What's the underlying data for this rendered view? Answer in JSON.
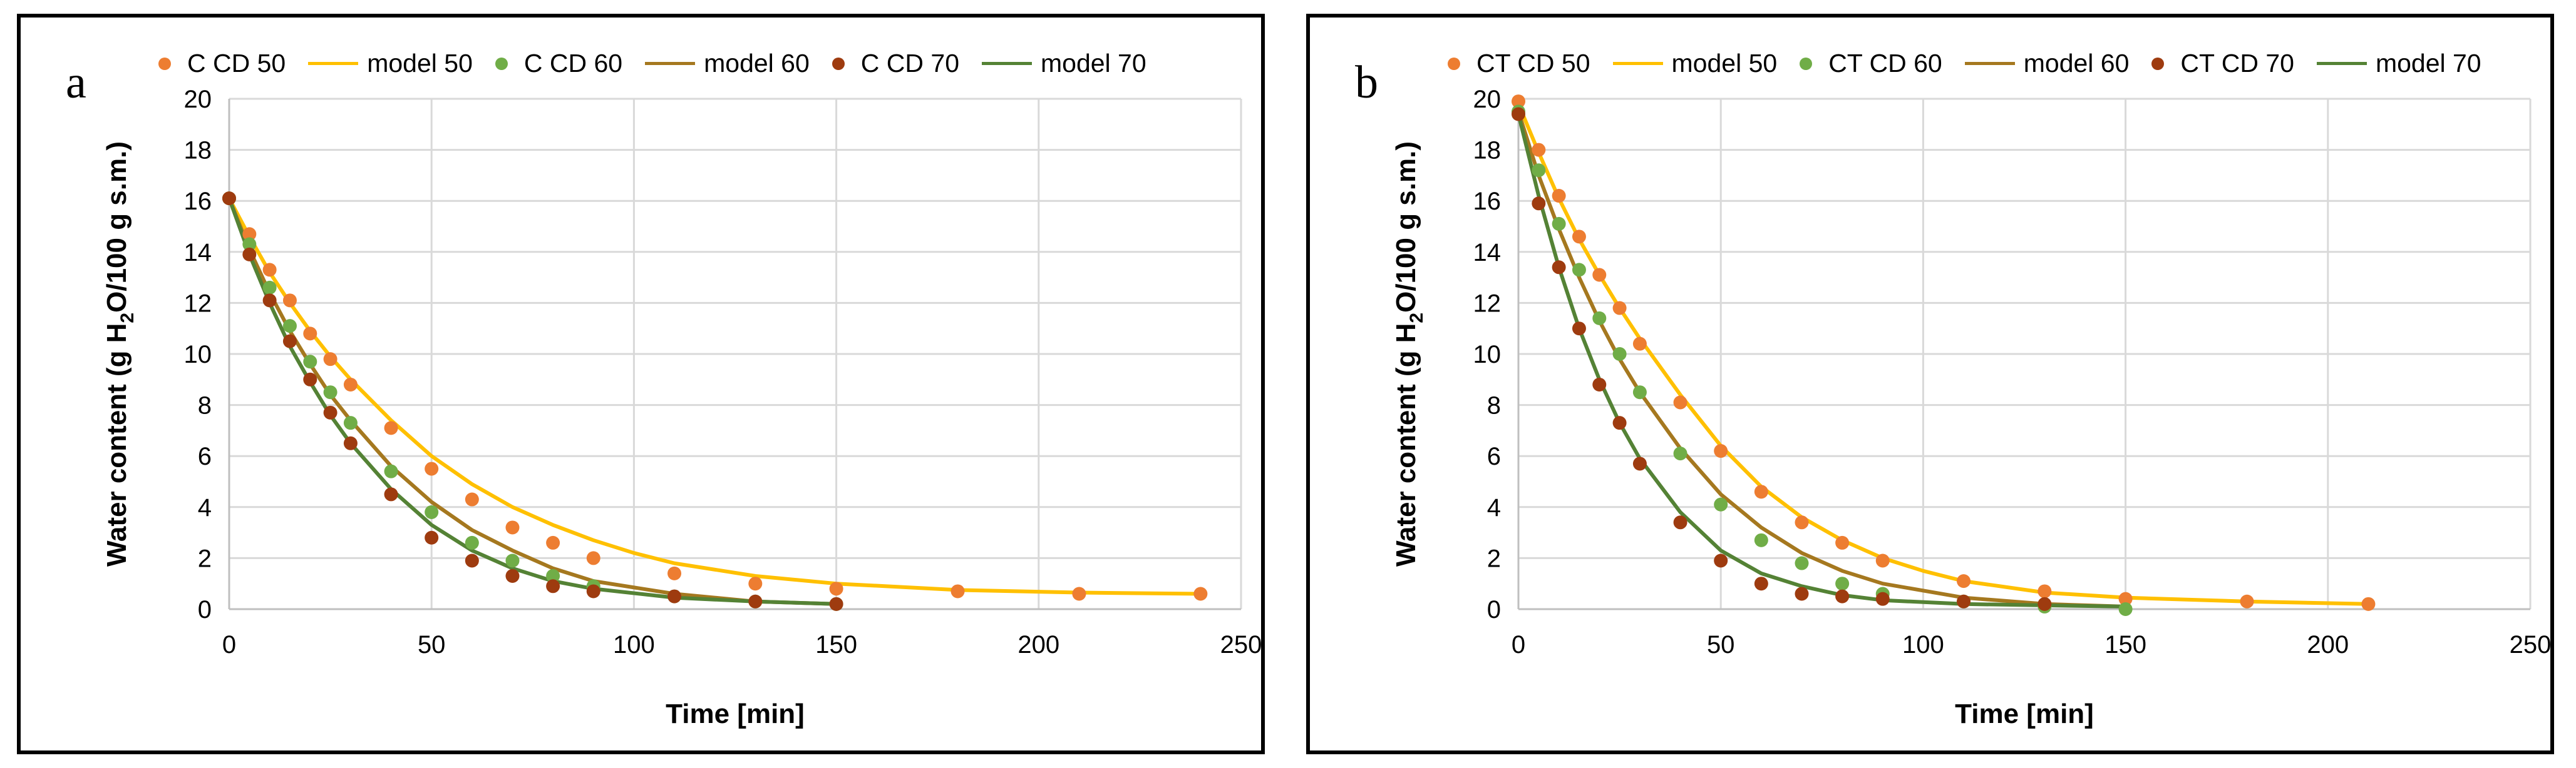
{
  "chart_data": [
    {
      "type": "scatter",
      "panel_label": "a",
      "title": "",
      "xlabel": "Time [min]",
      "ylabel_parts": [
        "Water content (g H",
        "2",
        "O/100 g s.m.)"
      ],
      "xlim": [
        0,
        250
      ],
      "ylim": [
        0,
        20
      ],
      "xticks": [
        0,
        50,
        100,
        150,
        200,
        250
      ],
      "yticks": [
        0,
        2,
        4,
        6,
        8,
        10,
        12,
        14,
        16,
        18,
        20
      ],
      "grid": true,
      "legend_position": "top",
      "series": [
        {
          "name": "C CD 50",
          "kind": "marker",
          "color": "#ED7D31",
          "x": [
            0,
            5,
            10,
            15,
            20,
            25,
            30,
            40,
            50,
            60,
            70,
            80,
            90,
            110,
            130,
            150,
            180,
            210,
            240
          ],
          "y": [
            16.1,
            14.7,
            13.3,
            12.1,
            10.8,
            9.8,
            8.8,
            7.1,
            5.5,
            4.3,
            3.2,
            2.6,
            2.0,
            1.4,
            1.0,
            0.8,
            0.7,
            0.6,
            0.6
          ]
        },
        {
          "name": "model 50",
          "kind": "line",
          "color": "#FFC000",
          "x": [
            0,
            5,
            10,
            15,
            20,
            25,
            30,
            40,
            50,
            60,
            70,
            80,
            90,
            100,
            110,
            130,
            150,
            180,
            210,
            240
          ],
          "y": [
            16.1,
            14.6,
            13.2,
            12.0,
            10.9,
            9.9,
            9.0,
            7.4,
            6.0,
            4.9,
            4.0,
            3.3,
            2.7,
            2.2,
            1.8,
            1.3,
            1.0,
            0.75,
            0.65,
            0.6
          ]
        },
        {
          "name": "C CD 60",
          "kind": "marker",
          "color": "#70AD47",
          "x": [
            0,
            5,
            10,
            15,
            20,
            25,
            30,
            40,
            50,
            60,
            70,
            80,
            90,
            110,
            130,
            150
          ],
          "y": [
            16.1,
            14.3,
            12.6,
            11.1,
            9.7,
            8.5,
            7.3,
            5.4,
            3.8,
            2.6,
            1.9,
            1.3,
            0.9,
            0.5,
            0.3,
            0.2
          ]
        },
        {
          "name": "model 60",
          "kind": "line",
          "color": "#A5781F",
          "x": [
            0,
            5,
            10,
            15,
            20,
            25,
            30,
            40,
            50,
            60,
            70,
            80,
            90,
            110,
            130,
            150
          ],
          "y": [
            16.1,
            14.1,
            12.4,
            10.9,
            9.6,
            8.4,
            7.4,
            5.6,
            4.2,
            3.1,
            2.3,
            1.6,
            1.1,
            0.6,
            0.3,
            0.2
          ]
        },
        {
          "name": "C CD 70",
          "kind": "marker",
          "color": "#9E3B0F",
          "x": [
            0,
            5,
            10,
            15,
            20,
            25,
            30,
            40,
            50,
            60,
            70,
            80,
            90,
            110,
            130,
            150
          ],
          "y": [
            16.1,
            13.9,
            12.1,
            10.5,
            9.0,
            7.7,
            6.5,
            4.5,
            2.8,
            1.9,
            1.3,
            0.9,
            0.7,
            0.5,
            0.3,
            0.2
          ]
        },
        {
          "name": "model 70",
          "kind": "line",
          "color": "#548235",
          "x": [
            0,
            5,
            10,
            15,
            20,
            25,
            30,
            40,
            50,
            60,
            70,
            80,
            90,
            110,
            130,
            150
          ],
          "y": [
            16.1,
            13.9,
            12.0,
            10.3,
            8.9,
            7.6,
            6.5,
            4.7,
            3.3,
            2.3,
            1.6,
            1.1,
            0.8,
            0.45,
            0.3,
            0.2
          ]
        }
      ]
    },
    {
      "type": "scatter",
      "panel_label": "b",
      "title": "",
      "xlabel": "Time [min]",
      "ylabel_parts": [
        "Water content (g H",
        "2",
        "O/100 g s.m.)"
      ],
      "xlim": [
        0,
        250
      ],
      "ylim": [
        0,
        20
      ],
      "xticks": [
        0,
        50,
        100,
        150,
        200,
        250
      ],
      "yticks": [
        0,
        2,
        4,
        6,
        8,
        10,
        12,
        14,
        16,
        18,
        20
      ],
      "grid": true,
      "legend_position": "top",
      "series": [
        {
          "name": "CT CD 50",
          "kind": "marker",
          "color": "#ED7D31",
          "x": [
            0,
            5,
            10,
            15,
            20,
            25,
            30,
            40,
            50,
            60,
            70,
            80,
            90,
            110,
            130,
            150,
            180,
            210
          ],
          "y": [
            19.9,
            18.0,
            16.2,
            14.6,
            13.1,
            11.8,
            10.4,
            8.1,
            6.2,
            4.6,
            3.4,
            2.6,
            1.9,
            1.1,
            0.7,
            0.4,
            0.3,
            0.2
          ]
        },
        {
          "name": "model 50",
          "kind": "line",
          "color": "#FFC000",
          "x": [
            0,
            5,
            10,
            15,
            20,
            25,
            30,
            40,
            50,
            60,
            70,
            80,
            90,
            100,
            110,
            130,
            150,
            180,
            210
          ],
          "y": [
            19.8,
            17.9,
            16.1,
            14.5,
            13.1,
            11.8,
            10.6,
            8.4,
            6.4,
            4.8,
            3.6,
            2.7,
            2.0,
            1.5,
            1.1,
            0.65,
            0.45,
            0.3,
            0.2
          ]
        },
        {
          "name": "CT CD 60",
          "kind": "marker",
          "color": "#70AD47",
          "x": [
            0,
            5,
            10,
            15,
            20,
            25,
            30,
            40,
            50,
            60,
            70,
            80,
            90,
            110,
            130,
            150
          ],
          "y": [
            19.5,
            17.2,
            15.1,
            13.3,
            11.4,
            10.0,
            8.5,
            6.1,
            4.1,
            2.7,
            1.8,
            1.0,
            0.6,
            0.3,
            0.1,
            0.0
          ]
        },
        {
          "name": "model 60",
          "kind": "line",
          "color": "#A5781F",
          "x": [
            0,
            5,
            10,
            15,
            20,
            25,
            30,
            40,
            50,
            60,
            70,
            80,
            90,
            110,
            130,
            150
          ],
          "y": [
            19.5,
            17.0,
            14.9,
            13.0,
            11.3,
            9.8,
            8.5,
            6.3,
            4.5,
            3.2,
            2.2,
            1.5,
            1.0,
            0.45,
            0.2,
            0.1
          ]
        },
        {
          "name": "CT CD 70",
          "kind": "marker",
          "color": "#9E3B0F",
          "x": [
            0,
            5,
            10,
            15,
            20,
            25,
            30,
            40,
            50,
            60,
            70,
            80,
            90,
            110,
            130
          ],
          "y": [
            19.4,
            15.9,
            13.4,
            11.0,
            8.8,
            7.3,
            5.7,
            3.4,
            1.9,
            1.0,
            0.6,
            0.5,
            0.4,
            0.3,
            0.2
          ]
        },
        {
          "name": "model 70",
          "kind": "line",
          "color": "#548235",
          "x": [
            0,
            5,
            10,
            15,
            20,
            25,
            30,
            40,
            50,
            60,
            70,
            80,
            90,
            110,
            130,
            150
          ],
          "y": [
            19.4,
            16.2,
            13.4,
            11.0,
            9.0,
            7.3,
            5.9,
            3.8,
            2.3,
            1.4,
            0.9,
            0.55,
            0.35,
            0.2,
            0.15,
            0.1
          ]
        }
      ]
    }
  ]
}
